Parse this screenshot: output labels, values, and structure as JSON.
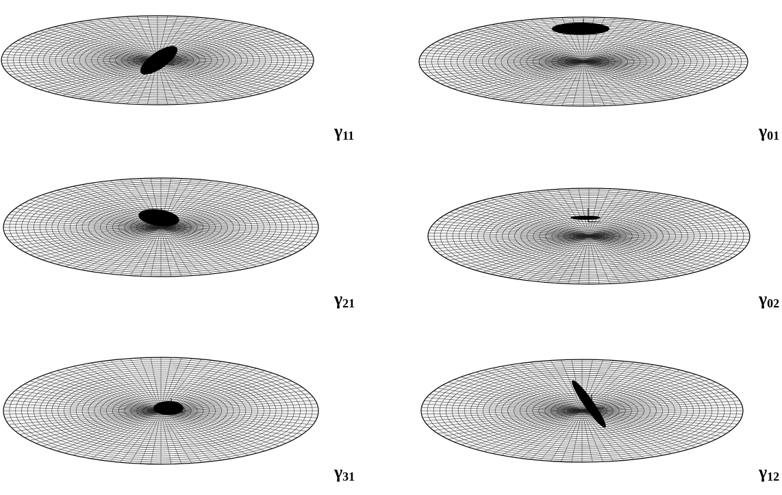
{
  "panels": [
    {
      "symbol": "γ",
      "subscript": "11"
    },
    {
      "symbol": "γ",
      "subscript": "01"
    },
    {
      "symbol": "γ",
      "subscript": "21"
    },
    {
      "symbol": "γ",
      "subscript": "02"
    },
    {
      "symbol": "γ",
      "subscript": "31"
    },
    {
      "symbol": "γ",
      "subscript": "12"
    }
  ]
}
